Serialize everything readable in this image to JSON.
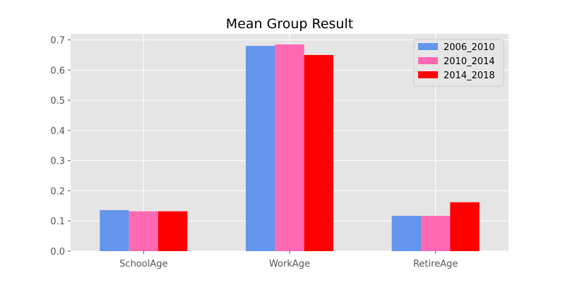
{
  "chart_data": {
    "type": "bar",
    "title": "Mean Group Result",
    "xlabel": "",
    "ylabel": "",
    "categories": [
      "SchoolAge",
      "WorkAge",
      "RetireAge"
    ],
    "series": [
      {
        "name": "2006_2010",
        "values": [
          0.136,
          0.68,
          0.117
        ],
        "color": "#6495ED"
      },
      {
        "name": "2010_2014",
        "values": [
          0.132,
          0.685,
          0.117
        ],
        "color": "#FF69B4"
      },
      {
        "name": "2014_2018",
        "values": [
          0.132,
          0.65,
          0.162
        ],
        "color": "#FF0000"
      }
    ],
    "ylim": [
      0,
      0.72
    ],
    "yticks": [
      "0.0",
      "0.1",
      "0.2",
      "0.3",
      "0.4",
      "0.5",
      "0.6",
      "0.7"
    ],
    "grid": true,
    "legend_position": "top-right",
    "plot_background": "#E5E5E5",
    "grid_color": "#FFFFFF"
  }
}
